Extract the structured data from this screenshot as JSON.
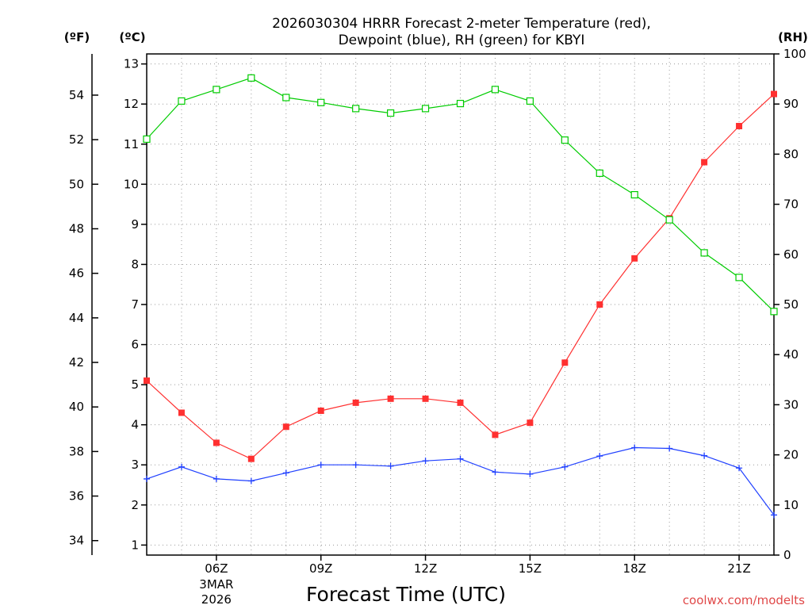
{
  "chart_data": {
    "type": "line",
    "title_lines": [
      "2026030304 HRRR Forecast 2-meter Temperature (red),",
      "Dewpoint (blue), RH (green) for KBYI"
    ],
    "xlabel": "Forecast Time (UTC)",
    "x_hours": [
      4,
      5,
      6,
      7,
      8,
      9,
      10,
      11,
      12,
      13,
      14,
      15,
      16,
      17,
      18,
      19,
      20,
      21,
      22
    ],
    "xlim": [
      4,
      22
    ],
    "x_ticks": [
      {
        "hour": 6,
        "label": "06Z",
        "sub": [
          "3MAR",
          "2026"
        ]
      },
      {
        "hour": 9,
        "label": "09Z",
        "sub": []
      },
      {
        "hour": 12,
        "label": "12Z",
        "sub": []
      },
      {
        "hour": 15,
        "label": "15Z",
        "sub": []
      },
      {
        "hour": 18,
        "label": "18Z",
        "sub": []
      },
      {
        "hour": 21,
        "label": "21Z",
        "sub": []
      }
    ],
    "left_axis_c": {
      "unit": "(ºC)",
      "ylim": [
        0.75,
        13.25
      ],
      "ticks": [
        1,
        2,
        3,
        4,
        5,
        6,
        7,
        8,
        9,
        10,
        11,
        12,
        13
      ]
    },
    "left_axis_f": {
      "unit": "(ºF)",
      "ticks": [
        34,
        36,
        38,
        40,
        42,
        44,
        46,
        48,
        50,
        52,
        54
      ]
    },
    "right_axis_rh": {
      "unit": "(RH)",
      "ylim": [
        0,
        100
      ],
      "ticks": [
        0,
        10,
        20,
        30,
        40,
        50,
        60,
        70,
        80,
        90,
        100
      ]
    },
    "series": [
      {
        "name": "Temperature",
        "axis": "c",
        "color": "#ff3030",
        "marker": "filled-square",
        "values": [
          5.1,
          4.3,
          3.55,
          3.15,
          3.95,
          4.35,
          4.55,
          4.65,
          4.65,
          4.55,
          3.75,
          4.05,
          5.55,
          7.0,
          8.15,
          9.15,
          10.55,
          11.45,
          12.25
        ]
      },
      {
        "name": "Dewpoint",
        "axis": "c",
        "color": "#2040ff",
        "marker": "plus",
        "values": [
          2.65,
          2.95,
          2.65,
          2.6,
          2.8,
          3.0,
          3.0,
          2.97,
          3.1,
          3.15,
          2.82,
          2.77,
          2.95,
          3.22,
          3.43,
          3.41,
          3.23,
          2.92,
          1.75
        ]
      },
      {
        "name": "RH",
        "axis": "rh",
        "color": "#00cc00",
        "marker": "open-square",
        "values": [
          83.0,
          90.6,
          92.9,
          95.2,
          91.3,
          90.3,
          89.1,
          88.2,
          89.1,
          90.1,
          92.9,
          90.6,
          82.8,
          76.2,
          71.9,
          66.9,
          60.3,
          55.4,
          48.6
        ]
      }
    ]
  },
  "credit": "coolwx.com/modelts"
}
